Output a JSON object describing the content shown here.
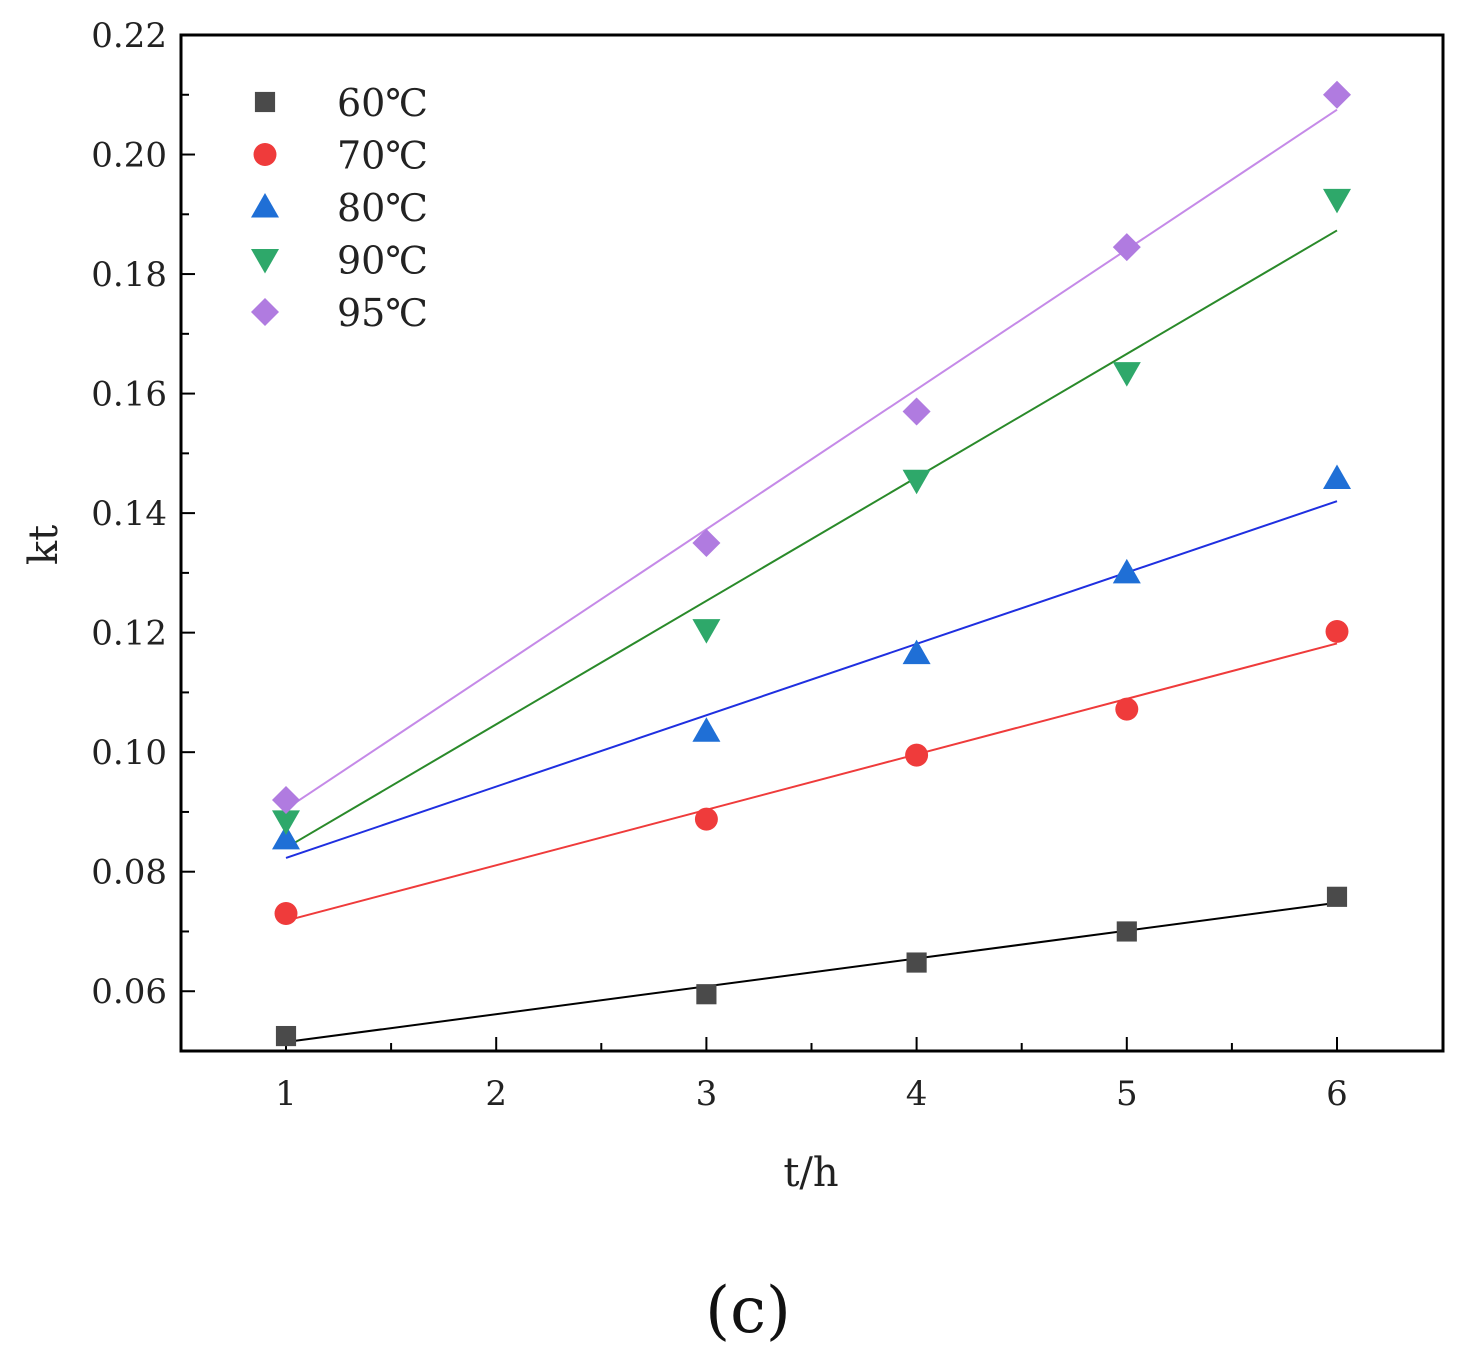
{
  "panel_label": "(c)",
  "chart_data": {
    "type": "scatter",
    "title": "",
    "xlabel": "t/h",
    "ylabel": "kt",
    "xlim": [
      0.5,
      6.5
    ],
    "ylim": [
      0.05,
      0.22
    ],
    "x_ticks": [
      1,
      2,
      3,
      4,
      5,
      6
    ],
    "x_tick_labels": [
      "1",
      "2",
      "3",
      "4",
      "5",
      "6"
    ],
    "y_ticks": [
      0.06,
      0.08,
      0.1,
      0.12,
      0.14,
      0.16,
      0.18,
      0.2,
      0.22
    ],
    "y_tick_labels": [
      "0.06",
      "0.08",
      "0.10",
      "0.12",
      "0.14",
      "0.16",
      "0.18",
      "0.20",
      "0.22"
    ],
    "grid": false,
    "legend_position": "top-left",
    "x": [
      1,
      3,
      4,
      5,
      6
    ],
    "series": [
      {
        "name": "60℃",
        "marker": "square",
        "color": "#4a4a4a",
        "line_color": "#000000",
        "values": [
          0.0525,
          0.0595,
          0.0648,
          0.07,
          0.0758
        ],
        "fit": [
          0.0515,
          0.0748
        ]
      },
      {
        "name": "70℃",
        "marker": "circle",
        "color": "#ef3b3b",
        "line_color": "#ef3b3b",
        "values": [
          0.073,
          0.0888,
          0.0995,
          0.1072,
          0.1202
        ],
        "fit": [
          0.0718,
          0.1182
        ]
      },
      {
        "name": "80℃",
        "marker": "triangle-up",
        "color": "#1f6fd6",
        "line_color": "#1f2fe0",
        "values": [
          0.0855,
          0.1035,
          0.1165,
          0.13,
          0.1458
        ],
        "fit": [
          0.0823,
          0.142
        ]
      },
      {
        "name": "90℃",
        "marker": "triangle-down",
        "color": "#2ea86a",
        "line_color": "#2a8a2a",
        "values": [
          0.0885,
          0.1205,
          0.1455,
          0.1635,
          0.1925
        ],
        "fit": [
          0.084,
          0.1873
        ]
      },
      {
        "name": "95℃",
        "marker": "diamond",
        "color": "#b07be0",
        "line_color": "#c58ae8",
        "values": [
          0.092,
          0.135,
          0.157,
          0.1845,
          0.21
        ],
        "fit": [
          0.0905,
          0.2075
        ]
      }
    ]
  }
}
